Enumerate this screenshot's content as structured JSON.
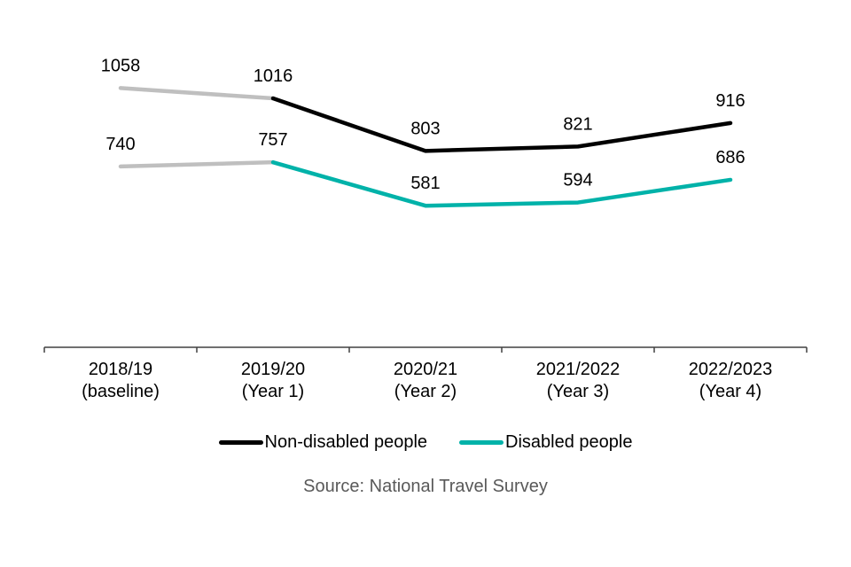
{
  "chart_data": {
    "type": "line",
    "title": "",
    "xlabel": "",
    "ylabel": "",
    "categories": [
      [
        "2018/19",
        "(baseline)"
      ],
      [
        "2019/20",
        "(Year 1)"
      ],
      [
        "2020/21",
        "(Year 2)"
      ],
      [
        "2021/2022",
        "(Year 3)"
      ],
      [
        "2022/2023",
        "(Year 4)"
      ]
    ],
    "ylim": [
      0,
      1400
    ],
    "y_axis_visible": false,
    "grid": false,
    "baseline_segment_color": "#bfbfbf",
    "series": [
      {
        "name": "Non-disabled people",
        "color": "#000000",
        "values": [
          1058,
          1016,
          803,
          821,
          916
        ]
      },
      {
        "name": "Disabled people",
        "color": "#00b2a9",
        "values": [
          740,
          757,
          581,
          594,
          686
        ]
      }
    ],
    "legend_position": "bottom",
    "source": "Source: National Travel Survey"
  }
}
